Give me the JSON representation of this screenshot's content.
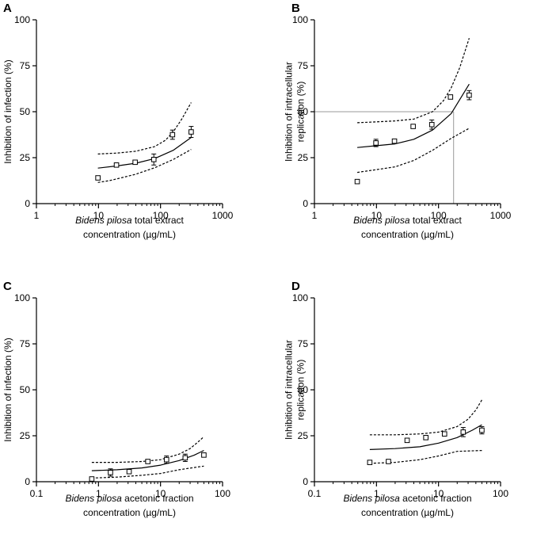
{
  "chart_data": [
    {
      "panel": "A",
      "type": "scatter",
      "xscale": "log",
      "xlim": [
        1,
        1000
      ],
      "ylim": [
        0,
        100
      ],
      "xticks": [
        "1",
        "10",
        "100",
        "1000"
      ],
      "yticks": [
        "0",
        "25",
        "50",
        "75",
        "100"
      ],
      "ylabel": "Inhibition of infection (%)",
      "ylabel_lines": [
        "Inhibition of infection (%)"
      ],
      "xlabel_species": "Bidens pilosa",
      "xlabel_rest": " total extract",
      "xlabel_line2": "concentration (µg/mL)",
      "points": [
        {
          "x": 9.8,
          "y": 14,
          "err": 1
        },
        {
          "x": 19.5,
          "y": 21,
          "err": 0.8
        },
        {
          "x": 39,
          "y": 22.5,
          "err": 0.8
        },
        {
          "x": 78,
          "y": 24,
          "err": 3
        },
        {
          "x": 156,
          "y": 37.5,
          "err": 2.5
        },
        {
          "x": 312,
          "y": 39,
          "err": 3
        }
      ],
      "fit": {
        "x": [
          9.8,
          20,
          40,
          80,
          160,
          312
        ],
        "y": [
          19.3,
          20.5,
          22,
          24.5,
          29,
          36
        ]
      },
      "ci_upper": {
        "x": [
          9.8,
          20,
          40,
          80,
          120,
          160,
          220,
          312
        ],
        "y": [
          27,
          27.5,
          28.5,
          31,
          34.5,
          39,
          46,
          55
        ]
      },
      "ci_lower": {
        "x": [
          9.8,
          15,
          20,
          40,
          80,
          160,
          312
        ],
        "y": [
          11.5,
          12.5,
          13.5,
          16,
          19.5,
          24,
          29.5
        ]
      }
    },
    {
      "panel": "B",
      "type": "scatter",
      "xscale": "log",
      "xlim": [
        1,
        1000
      ],
      "ylim": [
        0,
        100
      ],
      "xticks": [
        "1",
        "10",
        "100",
        "1000"
      ],
      "yticks": [
        "0",
        "25",
        "50",
        "75",
        "100"
      ],
      "ylabel": "Inhibition of intracellular replication (%)",
      "ylabel_lines": [
        "Inhibition of intracellular",
        "replication (%)"
      ],
      "xlabel_species": "Bidens pilosa",
      "xlabel_rest": " total extract",
      "xlabel_line2": "concentration (µg/mL)",
      "points": [
        {
          "x": 4.9,
          "y": 12,
          "err": 0.8
        },
        {
          "x": 9.8,
          "y": 33,
          "err": 2
        },
        {
          "x": 19.5,
          "y": 34,
          "err": 0.8
        },
        {
          "x": 39,
          "y": 42,
          "err": 0.8
        },
        {
          "x": 78,
          "y": 43,
          "err": 2.5
        },
        {
          "x": 156,
          "y": 58,
          "err": 1
        },
        {
          "x": 312,
          "y": 59,
          "err": 2.5
        }
      ],
      "fit": {
        "x": [
          4.9,
          10,
          20,
          40,
          80,
          160,
          312
        ],
        "y": [
          30.5,
          31.5,
          32.5,
          35,
          40,
          49,
          65
        ]
      },
      "ci_upper": {
        "x": [
          4.9,
          10,
          20,
          40,
          80,
          120,
          160,
          220,
          312
        ],
        "y": [
          44,
          44.5,
          45,
          46,
          50,
          56,
          63,
          74,
          90
        ]
      },
      "ci_lower": {
        "x": [
          4.9,
          10,
          20,
          40,
          80,
          160,
          312
        ],
        "y": [
          17,
          18.5,
          20,
          23.5,
          29,
          35.5,
          41
        ]
      },
      "ec50_guides": {
        "x": 175,
        "y": 50
      }
    },
    {
      "panel": "C",
      "type": "scatter",
      "xscale": "log",
      "xlim": [
        0.1,
        100
      ],
      "ylim": [
        0,
        100
      ],
      "xticks": [
        "0.1",
        "1",
        "10",
        "100"
      ],
      "yticks": [
        "0",
        "25",
        "50",
        "75",
        "100"
      ],
      "ylabel": "Inhibition of infection (%)",
      "ylabel_lines": [
        "Inhibition of infection (%)"
      ],
      "xlabel_species": "Bidens pilosa",
      "xlabel_rest": " acetonic fraction",
      "xlabel_line2": "concentration (µg/mL)",
      "points": [
        {
          "x": 0.78,
          "y": 1.5,
          "err": 0.5
        },
        {
          "x": 1.56,
          "y": 5,
          "err": 2
        },
        {
          "x": 3.12,
          "y": 5.5,
          "err": 0.5
        },
        {
          "x": 6.25,
          "y": 11,
          "err": 1
        },
        {
          "x": 12.5,
          "y": 12,
          "err": 2
        },
        {
          "x": 25,
          "y": 13,
          "err": 2
        },
        {
          "x": 50,
          "y": 14.5,
          "err": 1
        }
      ],
      "fit": {
        "x": [
          0.78,
          2,
          5,
          10,
          20,
          35,
          50
        ],
        "y": [
          6,
          6.5,
          7.5,
          9,
          11.5,
          14.5,
          17
        ]
      },
      "ci_upper": {
        "x": [
          0.78,
          2,
          5,
          10,
          20,
          30,
          40,
          50
        ],
        "y": [
          10.5,
          10.5,
          11,
          12,
          15,
          18,
          21.5,
          24.5
        ]
      },
      "ci_lower": {
        "x": [
          0.78,
          2,
          5,
          10,
          20,
          50
        ],
        "y": [
          2,
          2.5,
          3.5,
          4.5,
          6.5,
          8.5
        ]
      }
    },
    {
      "panel": "D",
      "type": "scatter",
      "xscale": "log",
      "xlim": [
        0.1,
        100
      ],
      "ylim": [
        0,
        100
      ],
      "xticks": [
        "0.1",
        "1",
        "10",
        "100"
      ],
      "yticks": [
        "0",
        "25",
        "50",
        "75",
        "100"
      ],
      "ylabel": "Inhibition of intracellular replication (%)",
      "ylabel_lines": [
        "Inhibition of intracellular",
        "replication (%)"
      ],
      "xlabel_species": "Bidens pilosa",
      "xlabel_rest": " acetonic fraction",
      "xlabel_line2": "concentration (µg/mL)",
      "points": [
        {
          "x": 0.78,
          "y": 10.5,
          "err": 0.8
        },
        {
          "x": 1.56,
          "y": 11,
          "err": 0.5
        },
        {
          "x": 3.12,
          "y": 22.5,
          "err": 0.8
        },
        {
          "x": 6.25,
          "y": 24,
          "err": 0.8
        },
        {
          "x": 12.5,
          "y": 26,
          "err": 1
        },
        {
          "x": 25,
          "y": 27,
          "err": 2.5
        },
        {
          "x": 50,
          "y": 28,
          "err": 2
        }
      ],
      "fit": {
        "x": [
          0.78,
          2,
          5,
          10,
          20,
          35,
          50
        ],
        "y": [
          17.5,
          18,
          19,
          21,
          24,
          28,
          31
        ]
      },
      "ci_upper": {
        "x": [
          0.78,
          2,
          5,
          10,
          20,
          30,
          40,
          50
        ],
        "y": [
          25.5,
          25.5,
          26,
          27,
          30,
          34,
          39,
          44.5
        ]
      },
      "ci_lower": {
        "x": [
          0.78,
          2,
          5,
          10,
          20,
          50
        ],
        "y": [
          10,
          10.5,
          12,
          14,
          16.5,
          17
        ]
      }
    }
  ]
}
